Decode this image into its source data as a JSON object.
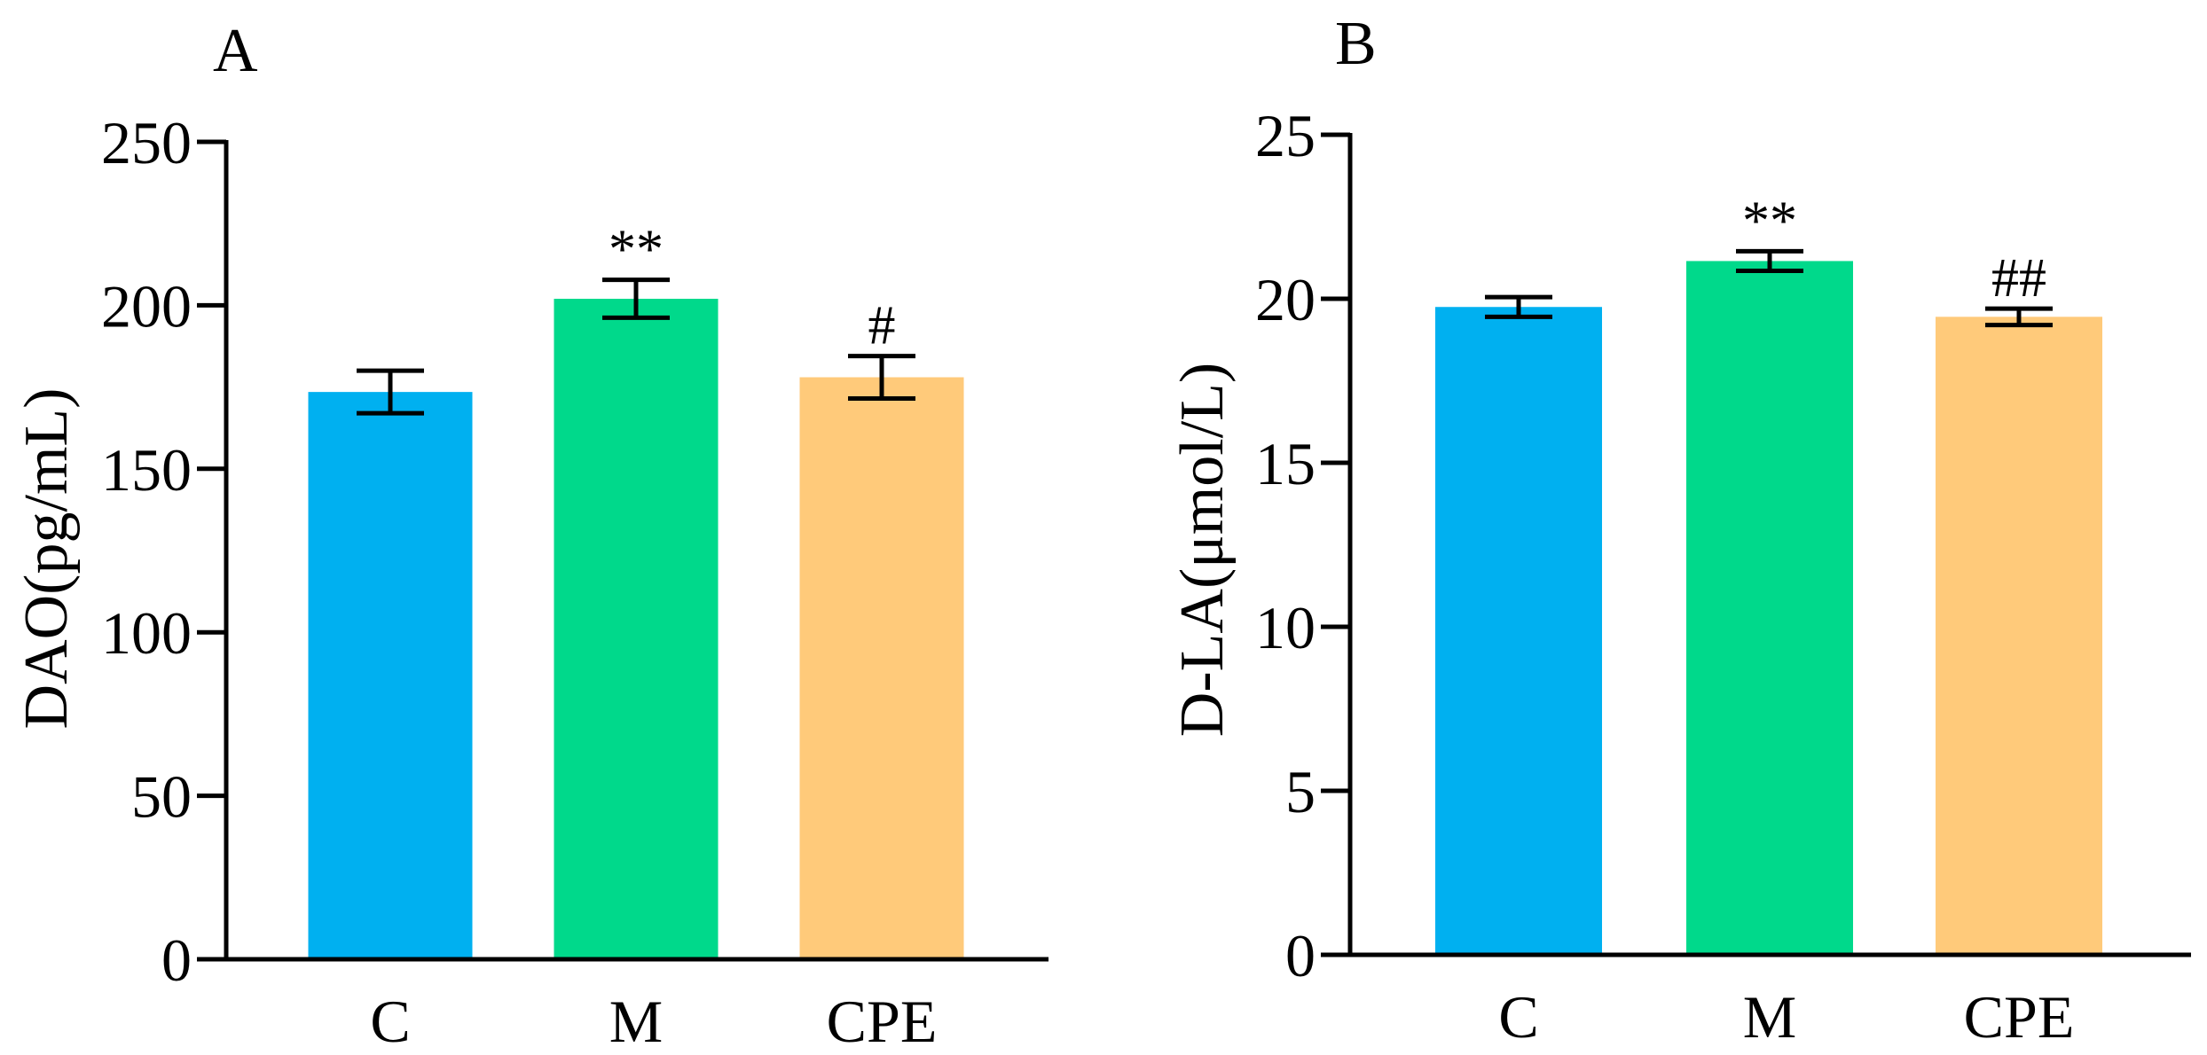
{
  "chart_data": [
    {
      "panel_label": "A",
      "type": "bar",
      "categories": [
        "C",
        "M",
        "CPE"
      ],
      "values": [
        173.5,
        202,
        178
      ],
      "errors": [
        6.5,
        5.8,
        6.5
      ],
      "annotations": [
        "",
        "**",
        "#"
      ],
      "bar_colors": [
        "#00b0f0",
        "#00d98b",
        "#ffca7a"
      ],
      "ylabel": "DAO(pg/mL)",
      "ylim": [
        0,
        250
      ],
      "yticks": [
        0,
        50,
        100,
        150,
        200,
        250
      ]
    },
    {
      "panel_label": "B",
      "type": "bar",
      "categories": [
        "C",
        "M",
        "CPE"
      ],
      "values": [
        19.75,
        21.15,
        19.45
      ],
      "errors": [
        0.3,
        0.3,
        0.25
      ],
      "annotations": [
        "",
        "**",
        "##"
      ],
      "bar_colors": [
        "#00b0f0",
        "#00d98b",
        "#ffca7a"
      ],
      "ylabel": "D-LA(μmol/L)",
      "ylim": [
        0,
        25
      ],
      "yticks": [
        0,
        5,
        10,
        15,
        20,
        25
      ]
    }
  ]
}
